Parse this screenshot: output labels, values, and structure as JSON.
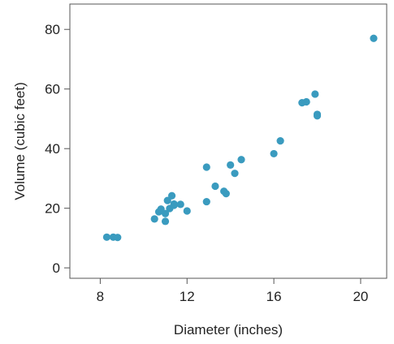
{
  "chart_data": {
    "type": "scatter",
    "title": "",
    "xlabel": "Diameter (inches)",
    "ylabel": "Volume (cubic feet)",
    "xlim": [
      6.6,
      21.2
    ],
    "ylim": [
      -3.5,
      88.5
    ],
    "xticks": [
      8,
      12,
      16,
      20
    ],
    "yticks": [
      0,
      20,
      40,
      60,
      80
    ],
    "xtick_labels": [
      "8",
      "12",
      "16",
      "20"
    ],
    "ytick_labels": [
      "0",
      "20",
      "40",
      "60",
      "80"
    ],
    "grid": false,
    "legend": "none",
    "point_color": "#3a9bbf",
    "series": [
      {
        "x": [
          8.3,
          8.6,
          8.8,
          10.5,
          10.7,
          10.8,
          11.0,
          11.0,
          11.1,
          11.2,
          11.3,
          11.4,
          11.4,
          11.7,
          12.0,
          12.9,
          12.9,
          13.3,
          13.7,
          13.8,
          14.0,
          14.2,
          14.5,
          16.0,
          16.3,
          17.3,
          17.5,
          17.9,
          18.0,
          18.0,
          20.6
        ],
        "y": [
          10.3,
          10.3,
          10.2,
          16.4,
          18.8,
          19.7,
          15.6,
          18.2,
          22.6,
          19.9,
          24.2,
          21.0,
          21.4,
          21.3,
          19.1,
          22.2,
          33.8,
          27.4,
          25.7,
          24.9,
          34.5,
          31.7,
          36.3,
          38.3,
          42.6,
          55.4,
          55.7,
          58.3,
          51.5,
          51.0,
          77.0
        ]
      }
    ]
  }
}
